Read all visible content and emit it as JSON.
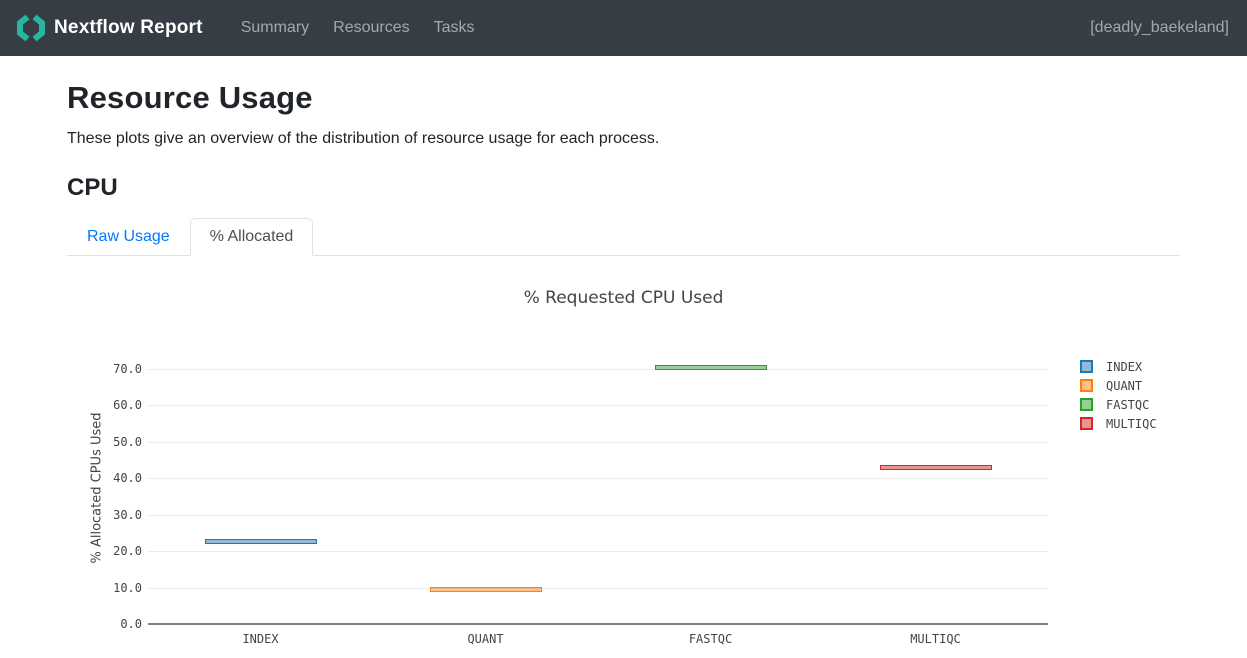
{
  "header": {
    "brand": "Nextflow Report",
    "brand_color": "#25b79f",
    "nav": [
      {
        "label": "Summary"
      },
      {
        "label": "Resources"
      },
      {
        "label": "Tasks"
      }
    ],
    "run_name": "[deadly_baekeland]"
  },
  "page": {
    "title": "Resource Usage",
    "subtitle": "These plots give an overview of the distribution of resource usage for each process.",
    "section_title": "CPU"
  },
  "tabs": [
    {
      "label": "Raw Usage",
      "active": false
    },
    {
      "label": "% Allocated",
      "active": true
    }
  ],
  "chart_data": {
    "type": "box",
    "title": "% Requested CPU Used",
    "ylabel": "% Allocated CPUs Used",
    "xlabel": "",
    "categories": [
      "INDEX",
      "QUANT",
      "FASTQC",
      "MULTIQC"
    ],
    "series": [
      {
        "name": "INDEX",
        "median": 22.6,
        "color": "#1f77b4"
      },
      {
        "name": "QUANT",
        "median": 9.6,
        "color": "#ff7f0e"
      },
      {
        "name": "FASTQC",
        "median": 70.3,
        "color": "#2ca02c"
      },
      {
        "name": "MULTIQC",
        "median": 43.0,
        "color": "#d62728"
      }
    ],
    "yticks": [
      0,
      10,
      20,
      30,
      40,
      50,
      60,
      70
    ],
    "ylim": [
      0,
      74.4
    ],
    "grid": true,
    "legend_position": "right",
    "box_fill_alpha": 0.5
  }
}
